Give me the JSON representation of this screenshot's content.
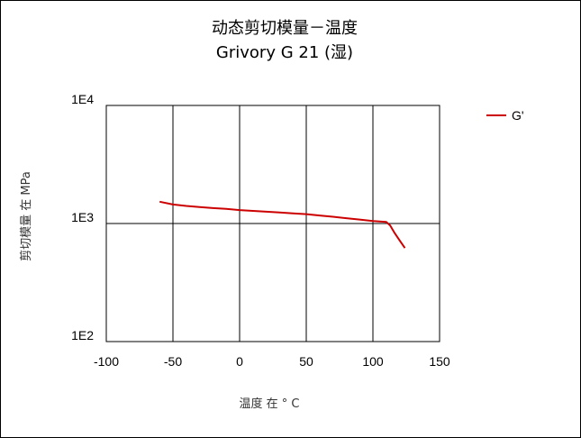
{
  "chart_data": {
    "type": "line",
    "title": "动态剪切模量－温度",
    "subtitle": "Grivory G 21 (湿)",
    "xlabel": "温度 在 ° C",
    "ylabel": "剪切模量 在   MPa",
    "xlim": [
      -100,
      150
    ],
    "ylim": [
      100,
      10000
    ],
    "yscale": "log",
    "grid": true,
    "legend_position": "top-right",
    "x_ticks": [
      "-100",
      "-50",
      "0",
      "50",
      "100",
      "150"
    ],
    "y_ticks": [
      "1E2",
      "1E3",
      "1E4"
    ],
    "series": [
      {
        "name": "G'",
        "color": "#cc0000",
        "x": [
          -60,
          -50,
          -40,
          -30,
          -20,
          -10,
          0,
          10,
          20,
          30,
          40,
          50,
          60,
          70,
          80,
          90,
          100,
          105,
          110,
          113,
          116,
          120,
          124
        ],
        "y": [
          1530,
          1450,
          1410,
          1380,
          1350,
          1330,
          1300,
          1280,
          1260,
          1240,
          1220,
          1200,
          1170,
          1140,
          1110,
          1080,
          1050,
          1040,
          1030,
          960,
          840,
          720,
          620
        ]
      }
    ]
  }
}
